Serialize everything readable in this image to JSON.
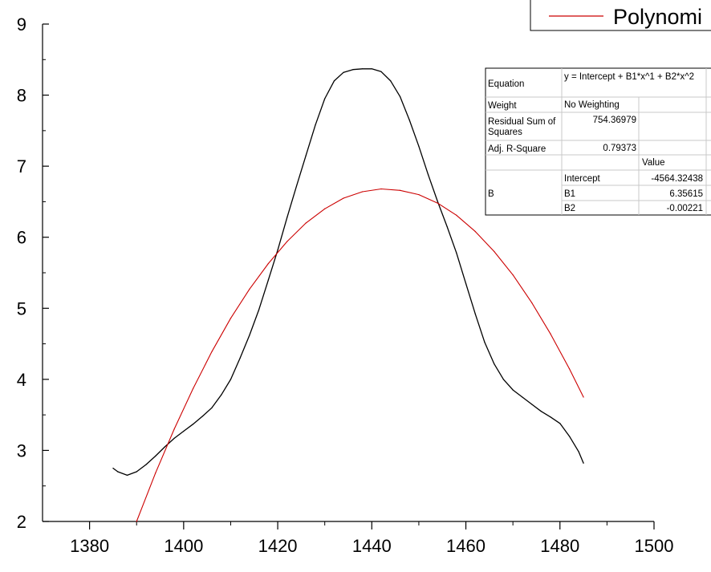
{
  "chart_data": {
    "type": "line",
    "title": "",
    "xlabel": "",
    "ylabel": "",
    "xlim": [
      1370,
      1500
    ],
    "ylim": [
      2,
      9
    ],
    "x_ticks": [
      1380,
      1400,
      1420,
      1440,
      1460,
      1480,
      1500
    ],
    "y_ticks": [
      2,
      3,
      4,
      5,
      6,
      7,
      8,
      9
    ],
    "grid": false,
    "legend": {
      "position": "top-right",
      "entries": [
        {
          "label": "Polynomi",
          "color": "#cc0000"
        }
      ]
    },
    "series": [
      {
        "color": "#000000",
        "x": [
          1385,
          1386,
          1388,
          1390,
          1392,
          1394,
          1396,
          1398,
          1400,
          1402,
          1404,
          1406,
          1408,
          1410,
          1412,
          1414,
          1416,
          1418,
          1420,
          1422,
          1424,
          1426,
          1428,
          1430,
          1432,
          1434,
          1436,
          1438,
          1440,
          1442,
          1444,
          1446,
          1448,
          1450,
          1452,
          1454,
          1456,
          1458,
          1460,
          1462,
          1464,
          1466,
          1468,
          1470,
          1472,
          1474,
          1476,
          1478,
          1480,
          1482,
          1484,
          1485
        ],
        "y": [
          2.75,
          2.7,
          2.65,
          2.7,
          2.8,
          2.92,
          3.05,
          3.17,
          3.27,
          3.37,
          3.48,
          3.6,
          3.78,
          4.0,
          4.3,
          4.62,
          4.98,
          5.4,
          5.82,
          6.28,
          6.72,
          7.15,
          7.58,
          7.95,
          8.2,
          8.32,
          8.36,
          8.37,
          8.37,
          8.33,
          8.2,
          7.98,
          7.65,
          7.28,
          6.88,
          6.5,
          6.15,
          5.78,
          5.35,
          4.92,
          4.52,
          4.22,
          4.0,
          3.85,
          3.75,
          3.65,
          3.55,
          3.47,
          3.38,
          3.2,
          2.98,
          2.82
        ]
      },
      {
        "color": "#cc0000",
        "x": [
          1390,
          1394,
          1398,
          1402,
          1406,
          1410,
          1414,
          1418,
          1422,
          1426,
          1430,
          1434,
          1438,
          1442,
          1446,
          1450,
          1454,
          1458,
          1462,
          1466,
          1470,
          1474,
          1478,
          1482,
          1485
        ],
        "y": [
          2.0,
          2.68,
          3.3,
          3.87,
          4.39,
          4.86,
          5.27,
          5.63,
          5.94,
          6.2,
          6.4,
          6.55,
          6.64,
          6.68,
          6.66,
          6.6,
          6.48,
          6.31,
          6.08,
          5.8,
          5.47,
          5.08,
          4.64,
          4.15,
          3.75
        ]
      }
    ]
  },
  "fit_table": {
    "rows": [
      {
        "label": "Equation",
        "value": "y = Intercept + B1*x^1 + B2*x^2"
      },
      {
        "label": "Weight",
        "value": "No Weighting"
      },
      {
        "label": "Residual Sum of Squares",
        "value": "754.36979"
      },
      {
        "label": "Adj. R-Square",
        "value": "0.79373"
      }
    ],
    "value_header": "Value",
    "group_label": "B",
    "params": [
      {
        "name": "Intercept",
        "value": "-4564.32438"
      },
      {
        "name": "B1",
        "value": "6.35615"
      },
      {
        "name": "B2",
        "value": "-0.00221"
      }
    ]
  }
}
